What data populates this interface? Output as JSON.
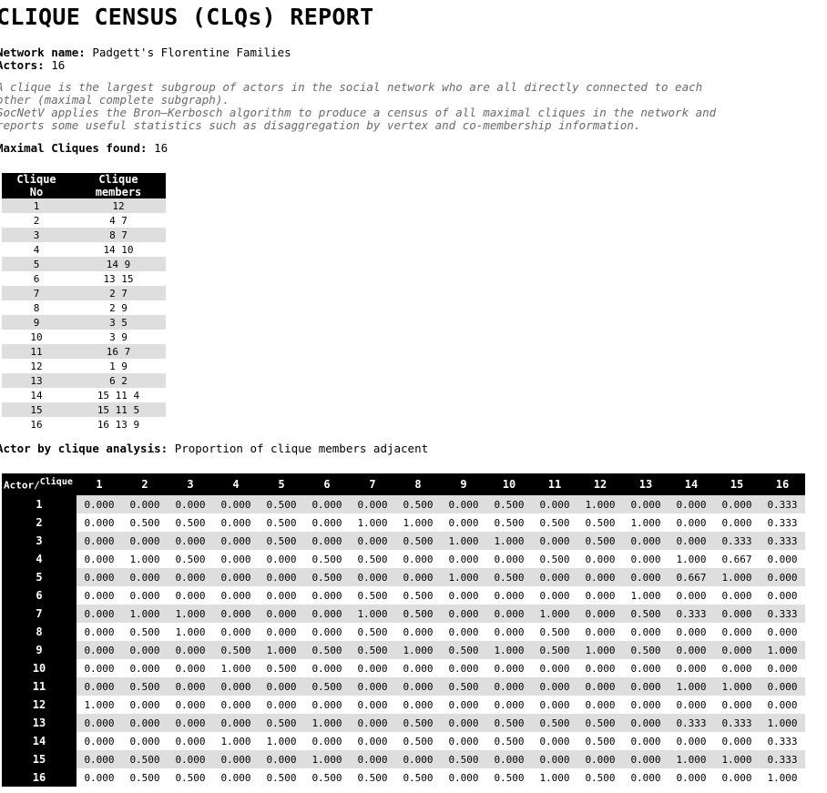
{
  "report": {
    "title": "CLIQUE CENSUS (CLQs) REPORT",
    "network_label": "Network name:",
    "network_name": "Padgett's Florentine Families",
    "actors_label": "Actors:",
    "actors_count": "16",
    "description_line1": "A clique is the largest subgroup of actors in the social network who are all directly connected to each",
    "description_line2": "other (maximal complete subgraph).",
    "description_line3": "SocNetV applies the Bron–Kerbosch algorithm to produce a census of all maximal cliques in the network and",
    "description_line4": "reports some useful statistics such as disaggregation by vertex and co-membership information.",
    "found_label": "Maximal Cliques found:",
    "found_count": "16"
  },
  "clique_table": {
    "headers": [
      "Clique No",
      "Clique members"
    ],
    "rows": [
      [
        "1",
        "12"
      ],
      [
        "2",
        "4 7"
      ],
      [
        "3",
        "8 7"
      ],
      [
        "4",
        "14 10"
      ],
      [
        "5",
        "14 9"
      ],
      [
        "6",
        "13 15"
      ],
      [
        "7",
        "2 7"
      ],
      [
        "8",
        "2 9"
      ],
      [
        "9",
        "3 5"
      ],
      [
        "10",
        "3 9"
      ],
      [
        "11",
        "16 7"
      ],
      [
        "12",
        "1 9"
      ],
      [
        "13",
        "6 2"
      ],
      [
        "14",
        "15 11 4"
      ],
      [
        "15",
        "15 11 5"
      ],
      [
        "16",
        "16 13 9"
      ]
    ]
  },
  "actor_analysis": {
    "label": "Actor by clique analysis:",
    "subtitle": "Proportion of clique members adjacent",
    "corner_actor": "Actor/",
    "corner_clique": "Clique",
    "columns": [
      "1",
      "2",
      "3",
      "4",
      "5",
      "6",
      "7",
      "8",
      "9",
      "10",
      "11",
      "12",
      "13",
      "14",
      "15",
      "16"
    ],
    "rows": [
      {
        "actor": "1",
        "values": [
          "0.000",
          "0.000",
          "0.000",
          "0.000",
          "0.500",
          "0.000",
          "0.000",
          "0.500",
          "0.000",
          "0.500",
          "0.000",
          "1.000",
          "0.000",
          "0.000",
          "0.000",
          "0.333"
        ]
      },
      {
        "actor": "2",
        "values": [
          "0.000",
          "0.500",
          "0.500",
          "0.000",
          "0.500",
          "0.000",
          "1.000",
          "1.000",
          "0.000",
          "0.500",
          "0.500",
          "0.500",
          "1.000",
          "0.000",
          "0.000",
          "0.333"
        ]
      },
      {
        "actor": "3",
        "values": [
          "0.000",
          "0.000",
          "0.000",
          "0.000",
          "0.500",
          "0.000",
          "0.000",
          "0.500",
          "1.000",
          "1.000",
          "0.000",
          "0.500",
          "0.000",
          "0.000",
          "0.333",
          "0.333"
        ]
      },
      {
        "actor": "4",
        "values": [
          "0.000",
          "1.000",
          "0.500",
          "0.000",
          "0.000",
          "0.500",
          "0.500",
          "0.000",
          "0.000",
          "0.000",
          "0.500",
          "0.000",
          "0.000",
          "1.000",
          "0.667",
          "0.000"
        ]
      },
      {
        "actor": "5",
        "values": [
          "0.000",
          "0.000",
          "0.000",
          "0.000",
          "0.000",
          "0.500",
          "0.000",
          "0.000",
          "1.000",
          "0.500",
          "0.000",
          "0.000",
          "0.000",
          "0.667",
          "1.000",
          "0.000"
        ]
      },
      {
        "actor": "6",
        "values": [
          "0.000",
          "0.000",
          "0.000",
          "0.000",
          "0.000",
          "0.000",
          "0.500",
          "0.500",
          "0.000",
          "0.000",
          "0.000",
          "0.000",
          "1.000",
          "0.000",
          "0.000",
          "0.000"
        ]
      },
      {
        "actor": "7",
        "values": [
          "0.000",
          "1.000",
          "1.000",
          "0.000",
          "0.000",
          "0.000",
          "1.000",
          "0.500",
          "0.000",
          "0.000",
          "1.000",
          "0.000",
          "0.500",
          "0.333",
          "0.000",
          "0.333"
        ]
      },
      {
        "actor": "8",
        "values": [
          "0.000",
          "0.500",
          "1.000",
          "0.000",
          "0.000",
          "0.000",
          "0.500",
          "0.000",
          "0.000",
          "0.000",
          "0.500",
          "0.000",
          "0.000",
          "0.000",
          "0.000",
          "0.000"
        ]
      },
      {
        "actor": "9",
        "values": [
          "0.000",
          "0.000",
          "0.000",
          "0.500",
          "1.000",
          "0.500",
          "0.500",
          "1.000",
          "0.500",
          "1.000",
          "0.500",
          "1.000",
          "0.500",
          "0.000",
          "0.000",
          "1.000"
        ]
      },
      {
        "actor": "10",
        "values": [
          "0.000",
          "0.000",
          "0.000",
          "1.000",
          "0.500",
          "0.000",
          "0.000",
          "0.000",
          "0.000",
          "0.000",
          "0.000",
          "0.000",
          "0.000",
          "0.000",
          "0.000",
          "0.000"
        ]
      },
      {
        "actor": "11",
        "values": [
          "0.000",
          "0.500",
          "0.000",
          "0.000",
          "0.000",
          "0.500",
          "0.000",
          "0.000",
          "0.500",
          "0.000",
          "0.000",
          "0.000",
          "0.000",
          "1.000",
          "1.000",
          "0.000"
        ]
      },
      {
        "actor": "12",
        "values": [
          "1.000",
          "0.000",
          "0.000",
          "0.000",
          "0.000",
          "0.000",
          "0.000",
          "0.000",
          "0.000",
          "0.000",
          "0.000",
          "0.000",
          "0.000",
          "0.000",
          "0.000",
          "0.000"
        ]
      },
      {
        "actor": "13",
        "values": [
          "0.000",
          "0.000",
          "0.000",
          "0.000",
          "0.500",
          "1.000",
          "0.000",
          "0.500",
          "0.000",
          "0.500",
          "0.500",
          "0.500",
          "0.000",
          "0.333",
          "0.333",
          "1.000"
        ]
      },
      {
        "actor": "14",
        "values": [
          "0.000",
          "0.000",
          "0.000",
          "1.000",
          "1.000",
          "0.000",
          "0.000",
          "0.500",
          "0.000",
          "0.500",
          "0.000",
          "0.500",
          "0.000",
          "0.000",
          "0.000",
          "0.333"
        ]
      },
      {
        "actor": "15",
        "values": [
          "0.000",
          "0.500",
          "0.000",
          "0.000",
          "0.000",
          "1.000",
          "0.000",
          "0.000",
          "0.500",
          "0.000",
          "0.000",
          "0.000",
          "0.000",
          "1.000",
          "1.000",
          "0.333"
        ]
      },
      {
        "actor": "16",
        "values": [
          "0.000",
          "0.500",
          "0.500",
          "0.000",
          "0.500",
          "0.500",
          "0.500",
          "0.500",
          "0.000",
          "0.500",
          "1.000",
          "0.500",
          "0.000",
          "0.000",
          "0.000",
          "1.000"
        ]
      }
    ]
  }
}
